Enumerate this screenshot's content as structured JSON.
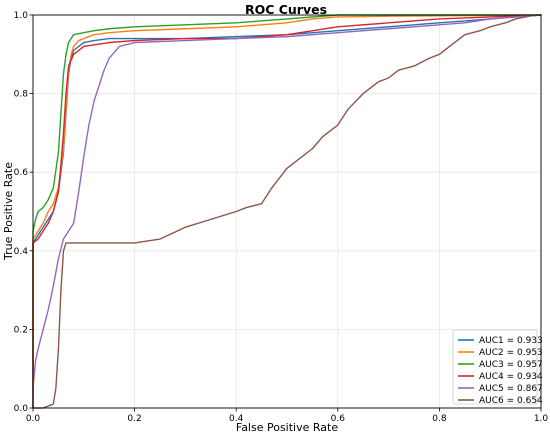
{
  "chart_data": {
    "type": "line",
    "title": "ROC Curves",
    "xlabel": "False Positive Rate",
    "ylabel": "True Positive Rate",
    "xlim": [
      0,
      1
    ],
    "ylim": [
      0,
      1
    ],
    "xticks": [
      "0.0",
      "0.2",
      "0.4",
      "0.6",
      "0.8",
      "1.0"
    ],
    "yticks": [
      "0.0",
      "0.2",
      "0.4",
      "0.6",
      "0.8",
      "1.0"
    ],
    "grid": true,
    "legend_position": "lower-right",
    "series": [
      {
        "name": "AUC1 = 0.933",
        "color": "#1f77b4",
        "x": [
          0,
          0,
          0.01,
          0.02,
          0.03,
          0.04,
          0.05,
          0.06,
          0.065,
          0.07,
          0.075,
          0.08,
          0.09,
          0.1,
          0.12,
          0.15,
          0.2,
          0.3,
          0.4,
          0.5,
          0.6,
          0.7,
          0.8,
          0.85,
          0.9,
          0.95,
          1.0
        ],
        "y": [
          0,
          0.42,
          0.44,
          0.46,
          0.48,
          0.5,
          0.55,
          0.65,
          0.75,
          0.85,
          0.89,
          0.91,
          0.92,
          0.93,
          0.935,
          0.94,
          0.94,
          0.94,
          0.945,
          0.95,
          0.96,
          0.97,
          0.98,
          0.985,
          0.99,
          0.995,
          1.0
        ]
      },
      {
        "name": "AUC2 = 0.953",
        "color": "#ff7f0e",
        "x": [
          0,
          0,
          0.01,
          0.02,
          0.03,
          0.04,
          0.05,
          0.06,
          0.065,
          0.07,
          0.075,
          0.08,
          0.09,
          0.1,
          0.12,
          0.15,
          0.2,
          0.3,
          0.4,
          0.45,
          0.5,
          0.55,
          0.6,
          0.7,
          0.8,
          0.9,
          1.0
        ],
        "y": [
          0,
          0.43,
          0.45,
          0.47,
          0.5,
          0.52,
          0.56,
          0.66,
          0.76,
          0.86,
          0.9,
          0.92,
          0.935,
          0.94,
          0.95,
          0.955,
          0.96,
          0.965,
          0.97,
          0.975,
          0.98,
          0.99,
          0.995,
          0.997,
          0.998,
          0.999,
          1.0
        ]
      },
      {
        "name": "AUC3 = 0.957",
        "color": "#2ca02c",
        "x": [
          0,
          0,
          0.005,
          0.01,
          0.02,
          0.03,
          0.04,
          0.05,
          0.055,
          0.06,
          0.065,
          0.07,
          0.08,
          0.1,
          0.12,
          0.15,
          0.2,
          0.3,
          0.4,
          0.5,
          0.6,
          0.7,
          0.8,
          0.9,
          1.0
        ],
        "y": [
          0,
          0.45,
          0.48,
          0.5,
          0.51,
          0.53,
          0.56,
          0.65,
          0.75,
          0.85,
          0.9,
          0.93,
          0.95,
          0.955,
          0.96,
          0.965,
          0.97,
          0.975,
          0.98,
          0.99,
          1.0,
          1.0,
          1.0,
          1.0,
          1.0
        ]
      },
      {
        "name": "AUC4 = 0.934",
        "color": "#d62728",
        "x": [
          0,
          0,
          0.01,
          0.02,
          0.03,
          0.04,
          0.05,
          0.055,
          0.06,
          0.065,
          0.07,
          0.08,
          0.1,
          0.15,
          0.2,
          0.3,
          0.4,
          0.5,
          0.6,
          0.7,
          0.8,
          0.9,
          1.0
        ],
        "y": [
          0,
          0.42,
          0.43,
          0.45,
          0.47,
          0.5,
          0.55,
          0.62,
          0.7,
          0.8,
          0.87,
          0.9,
          0.92,
          0.93,
          0.935,
          0.94,
          0.94,
          0.95,
          0.97,
          0.98,
          0.99,
          0.995,
          1.0
        ]
      },
      {
        "name": "AUC5 = 0.867",
        "color": "#9467bd",
        "x": [
          0,
          0,
          0.005,
          0.01,
          0.02,
          0.03,
          0.04,
          0.05,
          0.06,
          0.07,
          0.08,
          0.09,
          0.1,
          0.11,
          0.12,
          0.13,
          0.14,
          0.15,
          0.17,
          0.2,
          0.3,
          0.4,
          0.5,
          0.6,
          0.7,
          0.8,
          0.85,
          0.9,
          0.95,
          1.0
        ],
        "y": [
          0,
          0.05,
          0.12,
          0.15,
          0.2,
          0.25,
          0.31,
          0.38,
          0.43,
          0.45,
          0.47,
          0.55,
          0.64,
          0.72,
          0.78,
          0.82,
          0.86,
          0.89,
          0.92,
          0.93,
          0.935,
          0.94,
          0.945,
          0.955,
          0.965,
          0.975,
          0.98,
          0.99,
          0.995,
          1.0
        ]
      },
      {
        "name": "AUC6 = 0.654",
        "color": "#8c564b",
        "x": [
          0,
          0.02,
          0.04,
          0.045,
          0.05,
          0.055,
          0.06,
          0.065,
          0.07,
          0.2,
          0.25,
          0.3,
          0.35,
          0.4,
          0.42,
          0.45,
          0.47,
          0.5,
          0.52,
          0.55,
          0.57,
          0.6,
          0.62,
          0.65,
          0.68,
          0.7,
          0.72,
          0.75,
          0.78,
          0.8,
          0.82,
          0.85,
          0.88,
          0.9,
          0.93,
          0.95,
          0.98,
          1.0
        ],
        "y": [
          0,
          0,
          0.01,
          0.05,
          0.15,
          0.3,
          0.4,
          0.42,
          0.42,
          0.42,
          0.43,
          0.46,
          0.48,
          0.5,
          0.51,
          0.52,
          0.56,
          0.61,
          0.63,
          0.66,
          0.69,
          0.72,
          0.76,
          0.8,
          0.83,
          0.84,
          0.86,
          0.87,
          0.89,
          0.9,
          0.92,
          0.95,
          0.96,
          0.97,
          0.98,
          0.99,
          0.998,
          1.0
        ]
      }
    ]
  }
}
